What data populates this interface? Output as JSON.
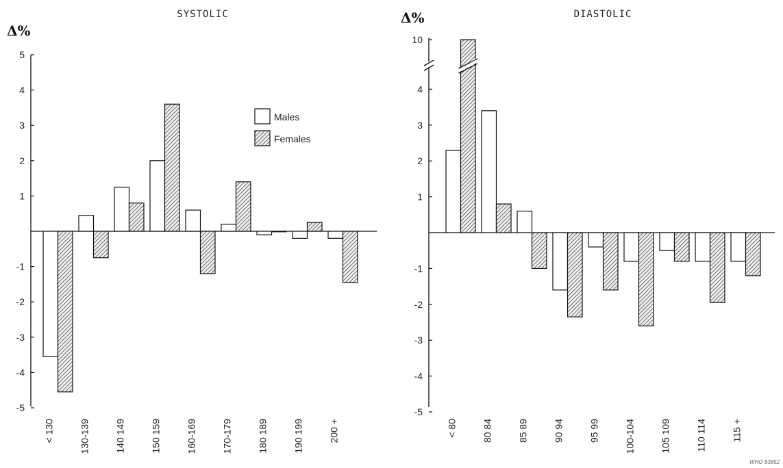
{
  "chart_data": [
    {
      "type": "bar",
      "title": "SYSTOLIC",
      "ylabel": "Δ%",
      "categories": [
        "< 130",
        "130-139",
        "140 149",
        "150 159",
        "160-169",
        "170-179",
        "180 189",
        "190 199",
        "200 +"
      ],
      "series": [
        {
          "name": "Males",
          "values": [
            -3.55,
            0.45,
            1.25,
            2.0,
            0.6,
            0.2,
            -0.1,
            -0.2,
            -0.2
          ]
        },
        {
          "name": "Females",
          "values": [
            -4.55,
            -0.75,
            0.8,
            3.6,
            -1.2,
            1.4,
            0.0,
            0.25,
            -1.45
          ]
        }
      ],
      "yticks": [
        "5",
        "4",
        "3",
        "2",
        "1",
        "-1",
        "-2",
        "-3",
        "-4",
        "-5"
      ],
      "ylim": [
        -5,
        5
      ],
      "legend": {
        "position": "top-right",
        "entries": [
          "Males",
          "Females"
        ]
      }
    },
    {
      "type": "bar",
      "title": "DIASTOLIC",
      "ylabel": "Δ%",
      "categories": [
        "< 80",
        "80 84",
        "85 89",
        "90 94",
        "95 99",
        "100-104",
        "105 109",
        "110 114",
        "115 +"
      ],
      "series": [
        {
          "name": "Males",
          "values": [
            2.3,
            3.4,
            0.6,
            -1.6,
            -0.4,
            -0.8,
            -0.5,
            -0.8,
            -0.8
          ]
        },
        {
          "name": "Females",
          "values": [
            10,
            0.8,
            -1.0,
            -2.35,
            -1.6,
            -2.6,
            -0.8,
            -1.95,
            -1.2
          ]
        }
      ],
      "yticks": [
        "10",
        "4",
        "3",
        "2",
        "1",
        "-1",
        "-2",
        "-3",
        "-4",
        "-5"
      ],
      "ylim": [
        -5,
        10
      ],
      "axis_break": "between 4 and 10"
    }
  ],
  "figure_code": "WHO 83852",
  "colors": {
    "males_fill": "#ffffff",
    "females_fill": "hatched",
    "line": "#111111"
  }
}
